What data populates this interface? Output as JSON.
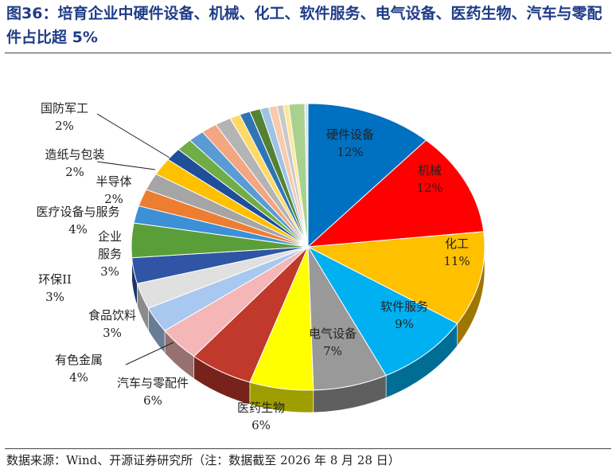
{
  "title": "图36：培育企业中硬件设备、机械、化工、软件服务、电气设备、医药生物、汽车与零配件占比超 5%",
  "source": "数据来源：Wind、开源证券研究所（注：数据截至 2026 年 8 月 28 日）",
  "chart_data": {
    "type": "pie",
    "title": "",
    "start": "12 o'clock, clockwise",
    "slices": [
      {
        "name": "硬件设备",
        "label": "12%",
        "value": 12,
        "color": "#0070c0"
      },
      {
        "name": "机械",
        "label": "12%",
        "value": 12,
        "color": "#ff0000"
      },
      {
        "name": "化工",
        "label": "11%",
        "value": 11,
        "color": "#ffc000"
      },
      {
        "name": "软件服务",
        "label": "9%",
        "value": 9,
        "color": "#00b0f0"
      },
      {
        "name": "电气设备",
        "label": "7%",
        "value": 7,
        "color": "#999999"
      },
      {
        "name": "医药生物",
        "label": "6%",
        "value": 6,
        "color": "#ffff00"
      },
      {
        "name": "汽车与零配件",
        "label": "6%",
        "value": 6,
        "color": "#c0392b"
      },
      {
        "name": "有色金属",
        "label": "4%",
        "value": 4,
        "color": "#f4b6b6"
      },
      {
        "name": "食品饮料",
        "label": "3%",
        "value": 3,
        "color": "#a9c8f0"
      },
      {
        "name": "环保II",
        "label": "3%",
        "value": 3,
        "color": "#e0e0e0"
      },
      {
        "name": "企业服务",
        "label": "3%",
        "value": 3,
        "color": "#2f55a4"
      },
      {
        "name": "医疗设备与服务",
        "label": "4%",
        "value": 4,
        "color": "#5a9e3a"
      },
      {
        "name": "半导体",
        "label": "2%",
        "value": 2,
        "color": "#3d8fd6"
      },
      {
        "name": "造纸与包装",
        "label": "2%",
        "value": 2,
        "color": "#ed7d31"
      },
      {
        "name": "国防军工",
        "label": "2%",
        "value": 2,
        "color": "#a5a5a5"
      },
      {
        "name": "",
        "label": "",
        "value": 2,
        "color": "#ffc000"
      },
      {
        "name": "",
        "label": "",
        "value": 1.5,
        "color": "#1f4e9a"
      },
      {
        "name": "",
        "label": "",
        "value": 1.5,
        "color": "#70ad47"
      },
      {
        "name": "",
        "label": "",
        "value": 1.5,
        "color": "#5b9bd5"
      },
      {
        "name": "",
        "label": "",
        "value": 1.5,
        "color": "#f4a582"
      },
      {
        "name": "",
        "label": "",
        "value": 1.5,
        "color": "#b4b4b4"
      },
      {
        "name": "",
        "label": "",
        "value": 1,
        "color": "#ffd966"
      },
      {
        "name": "",
        "label": "",
        "value": 1,
        "color": "#2e75b6"
      },
      {
        "name": "",
        "label": "",
        "value": 1,
        "color": "#548235"
      },
      {
        "name": "",
        "label": "",
        "value": 0.8,
        "color": "#9dc3e6"
      },
      {
        "name": "",
        "label": "",
        "value": 0.8,
        "color": "#f8cbad"
      },
      {
        "name": "",
        "label": "",
        "value": 0.6,
        "color": "#c9c9c9"
      },
      {
        "name": "",
        "label": "",
        "value": 0.5,
        "color": "#ffe699"
      },
      {
        "name": "",
        "label": "",
        "value": 1.5,
        "color": "#a9d18e"
      },
      {
        "name": "",
        "label": "",
        "value": 0.3,
        "color": "#dae3f3"
      }
    ]
  }
}
